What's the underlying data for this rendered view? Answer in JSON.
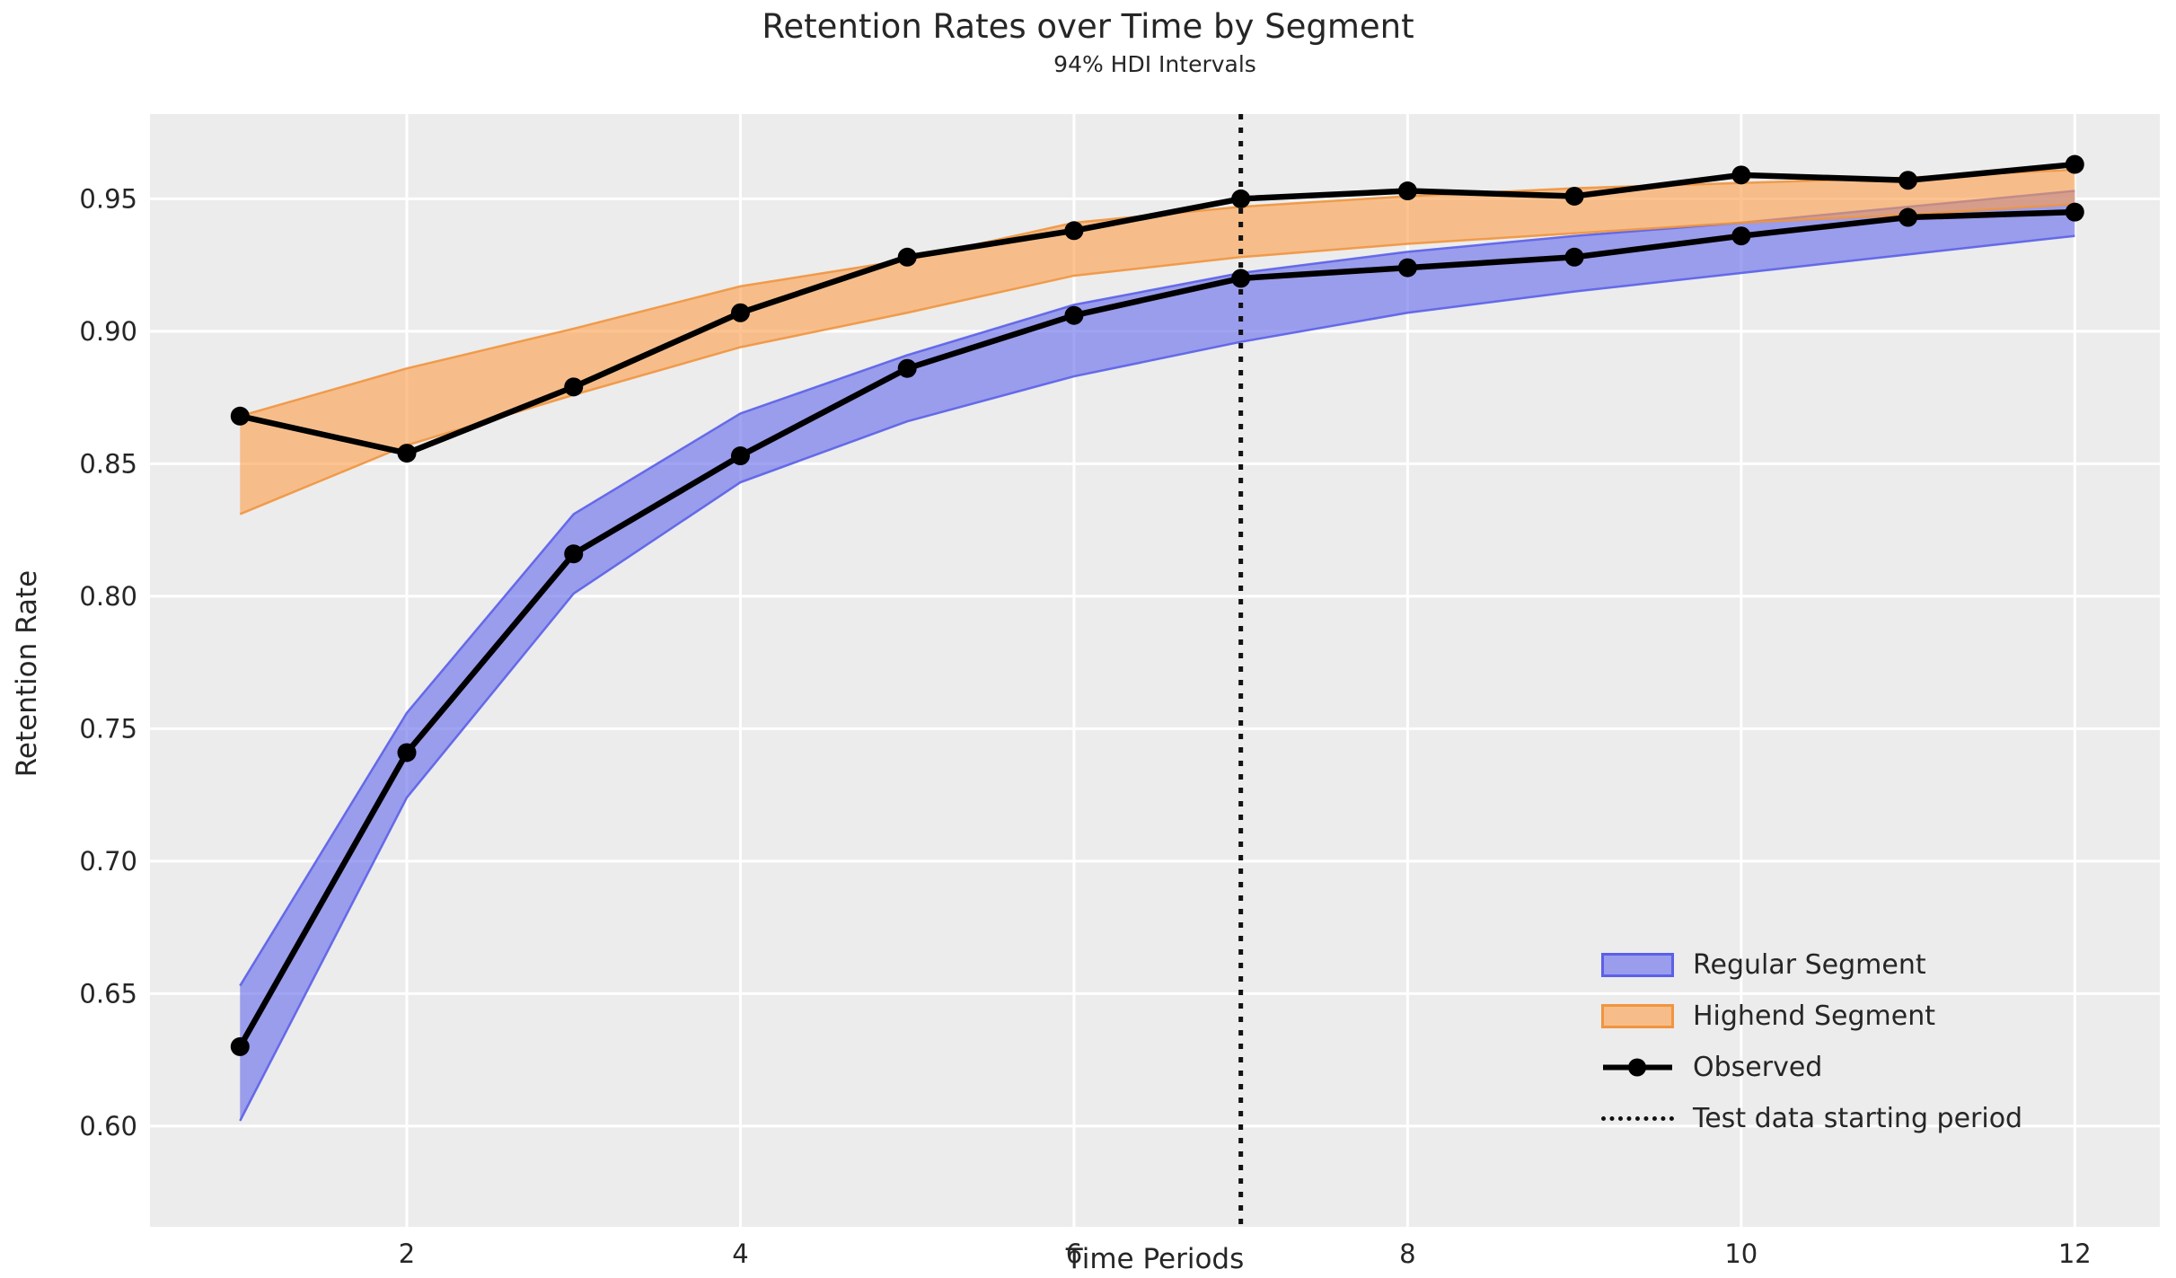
{
  "title": "Retention Rates over Time by Segment",
  "subtitle": "94% HDI Intervals",
  "axes": {
    "x_label": "Time Periods",
    "y_label": "Retention Rate"
  },
  "legend": {
    "items": [
      {
        "label": "Regular Segment",
        "swatch": "patch-regular"
      },
      {
        "label": "Highend Segment",
        "swatch": "patch-highend"
      },
      {
        "label": "Observed",
        "swatch": "line-marker"
      },
      {
        "label": "Test data starting period",
        "swatch": "dotted-line"
      }
    ],
    "position": "lower right",
    "frame": false
  },
  "colors": {
    "plot_background": "#ECECEC",
    "grid": "#FFFFFF",
    "regular_band_fill": "#676BEC",
    "regular_band_edge": "#5A60E8",
    "highend_band_fill": "#FC9F4E",
    "highend_band_edge": "#F0953F",
    "observed_line": "#000000",
    "test_line": "#111111",
    "text": "#262626"
  },
  "chart_data": {
    "type": "line",
    "title": "Retention Rates over Time by Segment",
    "subtitle": "94% HDI Intervals",
    "xlabel": "Time Periods",
    "ylabel": "Retention Rate",
    "x": [
      1,
      2,
      3,
      4,
      5,
      6,
      7,
      8,
      9,
      10,
      11,
      12
    ],
    "xticks": [
      2,
      4,
      6,
      8,
      10,
      12
    ],
    "yticks": [
      0.6,
      0.65,
      0.7,
      0.75,
      0.8,
      0.85,
      0.9,
      0.95
    ],
    "xlim": [
      0.46,
      12.51
    ],
    "ylim": [
      0.562,
      0.982
    ],
    "grid": true,
    "test_period_x": 7,
    "band_alpha": 0.62,
    "series": [
      {
        "name": "Regular Segment",
        "type": "hdi_band",
        "lower": [
          0.602,
          0.724,
          0.801,
          0.843,
          0.866,
          0.883,
          0.896,
          0.907,
          0.915,
          0.922,
          0.929,
          0.936
        ],
        "upper": [
          0.653,
          0.756,
          0.831,
          0.869,
          0.891,
          0.91,
          0.922,
          0.93,
          0.936,
          0.941,
          0.947,
          0.953
        ]
      },
      {
        "name": "Highend Segment",
        "type": "hdi_band",
        "lower": [
          0.831,
          0.857,
          0.876,
          0.894,
          0.907,
          0.921,
          0.928,
          0.933,
          0.937,
          0.941,
          0.944,
          0.948
        ],
        "upper": [
          0.868,
          0.886,
          0.901,
          0.917,
          0.927,
          0.941,
          0.947,
          0.951,
          0.954,
          0.956,
          0.958,
          0.961
        ]
      },
      {
        "name": "Observed (Regular)",
        "type": "line_marker",
        "values": [
          0.63,
          0.741,
          0.816,
          0.853,
          0.886,
          0.906,
          0.92,
          0.924,
          0.928,
          0.936,
          0.943,
          0.945
        ]
      },
      {
        "name": "Observed (Highend)",
        "type": "line_marker",
        "values": [
          0.868,
          0.854,
          0.879,
          0.907,
          0.928,
          0.938,
          0.95,
          0.953,
          0.951,
          0.959,
          0.957,
          0.963
        ]
      }
    ]
  }
}
